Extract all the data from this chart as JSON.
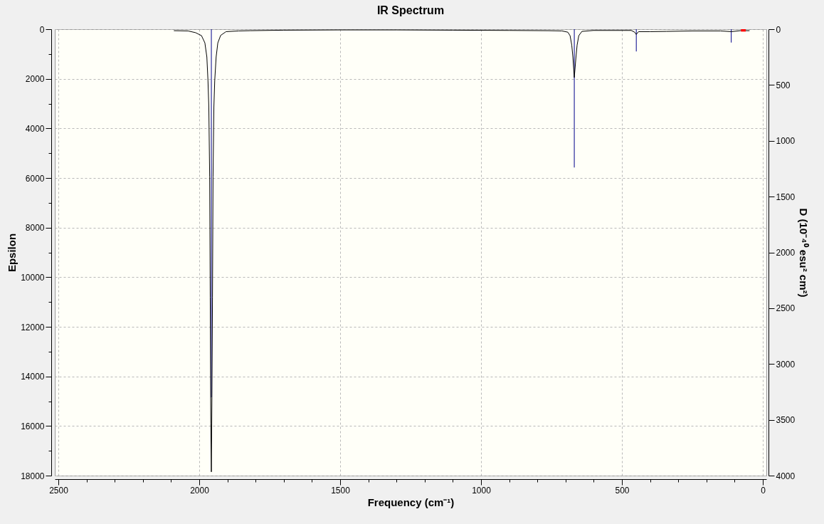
{
  "chart_data": {
    "type": "line",
    "title": "IR Spectrum",
    "xlabel": "Frequency (cm⁻¹)",
    "ylabel": "Epsilon",
    "y2label": "D (10⁻⁴⁰ esu² cm²)",
    "xlim": [
      2500,
      0
    ],
    "xticks": [
      2500,
      {
        "value": 2400,
        "label": null
      },
      {
        "value": 2300,
        "label": null
      },
      {
        "value": 2200,
        "label": null
      },
      {
        "value": 2100,
        "label": null
      },
      2000,
      {
        "value": 1900,
        "label": null
      },
      {
        "value": 1800,
        "label": null
      },
      {
        "value": 1700,
        "label": null
      },
      {
        "value": 1600,
        "label": null
      },
      1500,
      {
        "value": 1400,
        "label": null
      },
      {
        "value": 1300,
        "label": null
      },
      {
        "value": 1200,
        "label": null
      },
      {
        "value": 1100,
        "label": null
      },
      1000,
      {
        "value": 900,
        "label": null
      },
      {
        "value": 800,
        "label": null
      },
      {
        "value": 700,
        "label": null
      },
      {
        "value": 600,
        "label": null
      },
      500,
      {
        "value": 400,
        "label": null
      },
      {
        "value": 300,
        "label": null
      },
      {
        "value": 200,
        "label": null
      },
      {
        "value": 100,
        "label": null
      },
      0
    ],
    "ylim": [
      18000,
      0
    ],
    "yticks": [
      0,
      {
        "value": 1000,
        "label": null
      },
      2000,
      {
        "value": 3000,
        "label": null
      },
      4000,
      {
        "value": 5000,
        "label": null
      },
      6000,
      {
        "value": 7000,
        "label": null
      },
      8000,
      {
        "value": 9000,
        "label": null
      },
      10000,
      {
        "value": 11000,
        "label": null
      },
      12000,
      {
        "value": 13000,
        "label": null
      },
      14000,
      {
        "value": 15000,
        "label": null
      },
      16000,
      {
        "value": 17000,
        "label": null
      },
      18000
    ],
    "y2lim": [
      4000,
      0
    ],
    "y2ticks": [
      0,
      500,
      1000,
      1500,
      2000,
      2500,
      3000,
      3500,
      4000
    ],
    "grid": true,
    "series": [
      {
        "color": "#000000",
        "x": [
          2090,
          2040,
          2013,
          1992,
          1980,
          1973,
          1969,
          1966,
          1963,
          1961,
          1959,
          1957,
          1955,
          1953,
          1951,
          1948,
          1945,
          1940,
          1934,
          1924,
          1905,
          1860,
          1820,
          1700,
          1500,
          1300,
          1100,
          900,
          760,
          713,
          692,
          684,
          678,
          674,
          669,
          663,
          659,
          653,
          642,
          601,
          500,
          467,
          455,
          449,
          441,
          400,
          342,
          250,
          150,
          112,
          80,
          47
        ],
        "values": [
          60,
          70,
          140,
          260,
          550,
          1120,
          2070,
          3130,
          5950,
          10800,
          15900,
          17850,
          14850,
          10800,
          5950,
          3130,
          2070,
          1120,
          550,
          250,
          100,
          70,
          60,
          40,
          30,
          30,
          40,
          50,
          60,
          70,
          120,
          260,
          640,
          1120,
          1950,
          1120,
          640,
          260,
          90,
          50,
          50,
          50,
          120,
          210,
          100,
          100,
          90,
          70,
          70,
          100,
          60,
          60
        ]
      },
      {
        "type": "bar",
        "axis": "y2",
        "color": "#00008b",
        "x": [
          1957,
          669,
          449,
          112
        ],
        "values": [
          3300,
          1240,
          200,
          120
        ]
      },
      {
        "type": "scatter",
        "marker": "square",
        "color": "#ff0000",
        "x": [
          69
        ],
        "values": [
          0
        ]
      }
    ]
  }
}
